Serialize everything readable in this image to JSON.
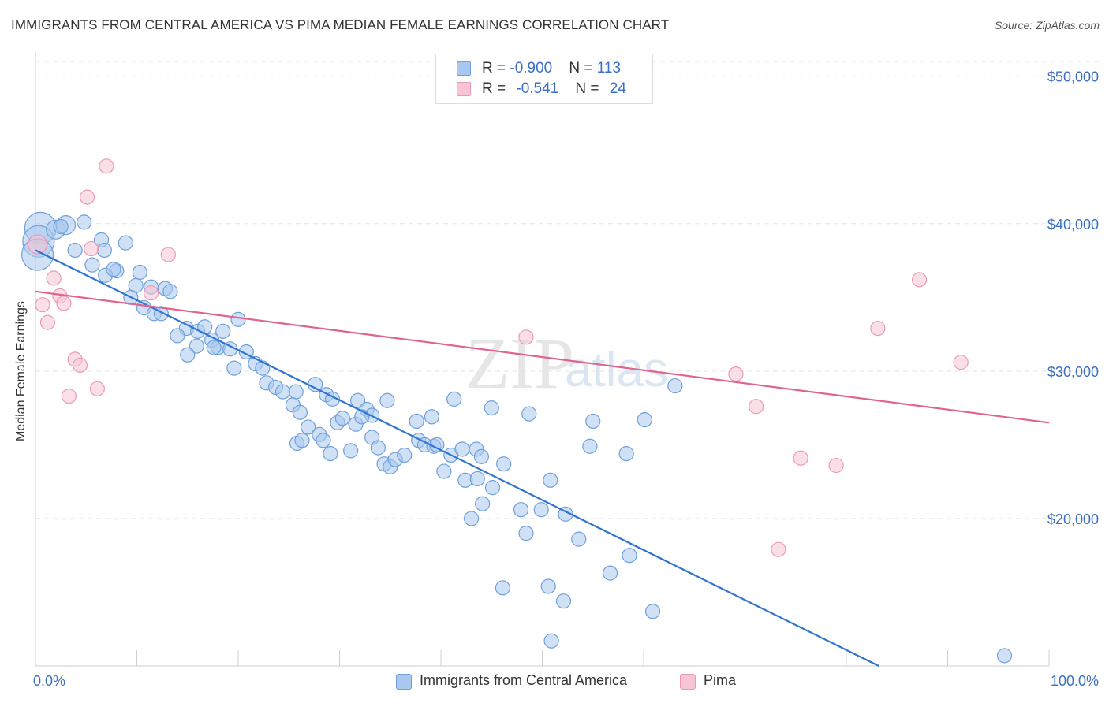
{
  "title": "IMMIGRANTS FROM CENTRAL AMERICA VS PIMA MEDIAN FEMALE EARNINGS CORRELATION CHART",
  "source": "Source: ZipAtlas.com",
  "watermark": {
    "zip": "ZIP",
    "atlas": "atlas"
  },
  "legend_top": [
    {
      "r_label": "R = ",
      "r_value": "-0.900",
      "n_label": "N = ",
      "n_value": "113",
      "color": "#6fa8e8"
    },
    {
      "r_label": "R = ",
      "r_value": "-0.541",
      "n_label": "N = ",
      "n_value": "24",
      "color": "#f2a0b8"
    }
  ],
  "legend_bottom": [
    {
      "label": "Immigrants from Central America",
      "color": "#6fa8e8"
    },
    {
      "label": "Pima",
      "color": "#f2a0b8"
    }
  ],
  "colors": {
    "blue_fill": "#a9c8ef",
    "blue_stroke": "#6fa0db",
    "blue_line": "#2f74d0",
    "pink_fill": "#f7c4d3",
    "pink_stroke": "#ec9ab4",
    "pink_line": "#e0648d",
    "tick_text": "#3a6fc4"
  },
  "chart_data": {
    "type": "scatter",
    "xlabel": "",
    "ylabel": "Median Female Earnings",
    "xlim": [
      0,
      100
    ],
    "ylim": [
      10000,
      51000
    ],
    "x_tick_labels": [
      "0.0%",
      "100.0%"
    ],
    "y_ticks": [
      20000,
      30000,
      40000,
      50000
    ],
    "y_tick_labels": [
      "$20,000",
      "$30,000",
      "$40,000",
      "$50,000"
    ],
    "grid": true,
    "series": [
      {
        "name": "Immigrants from Central America",
        "trend": {
          "x": [
            0,
            83.2
          ],
          "y": [
            38200,
            10000
          ]
        },
        "points": [
          {
            "x": 0.5,
            "y": 39700,
            "s": 3
          },
          {
            "x": 0.3,
            "y": 38800,
            "s": 3
          },
          {
            "x": 0.2,
            "y": 37900,
            "s": 3
          },
          {
            "x": 2.0,
            "y": 39600,
            "s": 2
          },
          {
            "x": 3.0,
            "y": 39900,
            "s": 2
          },
          {
            "x": 4.8,
            "y": 40100,
            "s": 1
          },
          {
            "x": 2.5,
            "y": 39800,
            "s": 1
          },
          {
            "x": 6.5,
            "y": 38900,
            "s": 1
          },
          {
            "x": 8.9,
            "y": 38700,
            "s": 1
          },
          {
            "x": 3.9,
            "y": 38200,
            "s": 1
          },
          {
            "x": 6.8,
            "y": 38200,
            "s": 1
          },
          {
            "x": 5.6,
            "y": 37200,
            "s": 1
          },
          {
            "x": 8.0,
            "y": 36800,
            "s": 1
          },
          {
            "x": 6.9,
            "y": 36500,
            "s": 1
          },
          {
            "x": 10.3,
            "y": 36700,
            "s": 1
          },
          {
            "x": 7.7,
            "y": 36900,
            "s": 1
          },
          {
            "x": 9.9,
            "y": 35800,
            "s": 1
          },
          {
            "x": 11.4,
            "y": 35700,
            "s": 1
          },
          {
            "x": 12.8,
            "y": 35600,
            "s": 1
          },
          {
            "x": 13.3,
            "y": 35400,
            "s": 1
          },
          {
            "x": 9.4,
            "y": 35000,
            "s": 1
          },
          {
            "x": 10.7,
            "y": 34300,
            "s": 1
          },
          {
            "x": 11.7,
            "y": 33900,
            "s": 1
          },
          {
            "x": 12.4,
            "y": 33900,
            "s": 1
          },
          {
            "x": 20.0,
            "y": 33500,
            "s": 1
          },
          {
            "x": 14.9,
            "y": 32900,
            "s": 1
          },
          {
            "x": 16.0,
            "y": 32700,
            "s": 1
          },
          {
            "x": 14.0,
            "y": 32400,
            "s": 1
          },
          {
            "x": 16.7,
            "y": 33000,
            "s": 1
          },
          {
            "x": 18.5,
            "y": 32700,
            "s": 1
          },
          {
            "x": 15.9,
            "y": 31700,
            "s": 1
          },
          {
            "x": 17.4,
            "y": 32100,
            "s": 1
          },
          {
            "x": 18.0,
            "y": 31600,
            "s": 1
          },
          {
            "x": 17.6,
            "y": 31600,
            "s": 1
          },
          {
            "x": 19.2,
            "y": 31500,
            "s": 1
          },
          {
            "x": 15.0,
            "y": 31100,
            "s": 1
          },
          {
            "x": 20.8,
            "y": 31300,
            "s": 1
          },
          {
            "x": 21.7,
            "y": 30500,
            "s": 1
          },
          {
            "x": 22.4,
            "y": 30200,
            "s": 1
          },
          {
            "x": 19.6,
            "y": 30200,
            "s": 1
          },
          {
            "x": 22.8,
            "y": 29200,
            "s": 1
          },
          {
            "x": 23.7,
            "y": 28900,
            "s": 1
          },
          {
            "x": 24.4,
            "y": 28600,
            "s": 1
          },
          {
            "x": 25.7,
            "y": 28600,
            "s": 1
          },
          {
            "x": 27.6,
            "y": 29100,
            "s": 1
          },
          {
            "x": 28.7,
            "y": 28400,
            "s": 1
          },
          {
            "x": 29.3,
            "y": 28100,
            "s": 1
          },
          {
            "x": 31.8,
            "y": 28000,
            "s": 1
          },
          {
            "x": 34.7,
            "y": 28000,
            "s": 1
          },
          {
            "x": 41.3,
            "y": 28100,
            "s": 1
          },
          {
            "x": 25.4,
            "y": 27700,
            "s": 1
          },
          {
            "x": 26.1,
            "y": 27200,
            "s": 1
          },
          {
            "x": 29.8,
            "y": 26500,
            "s": 1
          },
          {
            "x": 30.3,
            "y": 26800,
            "s": 1
          },
          {
            "x": 31.6,
            "y": 26400,
            "s": 1
          },
          {
            "x": 32.7,
            "y": 27400,
            "s": 1
          },
          {
            "x": 33.2,
            "y": 27000,
            "s": 1
          },
          {
            "x": 32.2,
            "y": 26900,
            "s": 1
          },
          {
            "x": 37.6,
            "y": 26600,
            "s": 1
          },
          {
            "x": 39.1,
            "y": 26900,
            "s": 1
          },
          {
            "x": 45.0,
            "y": 27500,
            "s": 1
          },
          {
            "x": 48.7,
            "y": 27100,
            "s": 1
          },
          {
            "x": 55.0,
            "y": 26600,
            "s": 1
          },
          {
            "x": 60.1,
            "y": 26700,
            "s": 1
          },
          {
            "x": 63.1,
            "y": 29000,
            "s": 1
          },
          {
            "x": 25.8,
            "y": 25100,
            "s": 1
          },
          {
            "x": 26.3,
            "y": 25300,
            "s": 1
          },
          {
            "x": 26.9,
            "y": 26200,
            "s": 1
          },
          {
            "x": 28.0,
            "y": 25700,
            "s": 1
          },
          {
            "x": 28.4,
            "y": 25300,
            "s": 1
          },
          {
            "x": 29.1,
            "y": 24400,
            "s": 1
          },
          {
            "x": 31.1,
            "y": 24600,
            "s": 1
          },
          {
            "x": 33.2,
            "y": 25500,
            "s": 1
          },
          {
            "x": 33.8,
            "y": 24800,
            "s": 1
          },
          {
            "x": 34.4,
            "y": 23700,
            "s": 1
          },
          {
            "x": 35.0,
            "y": 23500,
            "s": 1
          },
          {
            "x": 35.5,
            "y": 24000,
            "s": 1
          },
          {
            "x": 36.4,
            "y": 24300,
            "s": 1
          },
          {
            "x": 37.8,
            "y": 25300,
            "s": 1
          },
          {
            "x": 38.4,
            "y": 25000,
            "s": 1
          },
          {
            "x": 39.3,
            "y": 24900,
            "s": 1
          },
          {
            "x": 39.6,
            "y": 25000,
            "s": 1
          },
          {
            "x": 41.0,
            "y": 24300,
            "s": 1
          },
          {
            "x": 42.1,
            "y": 24700,
            "s": 1
          },
          {
            "x": 43.5,
            "y": 24700,
            "s": 1
          },
          {
            "x": 44.0,
            "y": 24200,
            "s": 1
          },
          {
            "x": 46.2,
            "y": 23700,
            "s": 1
          },
          {
            "x": 54.7,
            "y": 24900,
            "s": 1
          },
          {
            "x": 58.3,
            "y": 24400,
            "s": 1
          },
          {
            "x": 40.3,
            "y": 23200,
            "s": 1
          },
          {
            "x": 42.4,
            "y": 22600,
            "s": 1
          },
          {
            "x": 43.6,
            "y": 22700,
            "s": 1
          },
          {
            "x": 45.1,
            "y": 22100,
            "s": 1
          },
          {
            "x": 50.8,
            "y": 22600,
            "s": 1
          },
          {
            "x": 44.1,
            "y": 21000,
            "s": 1
          },
          {
            "x": 47.9,
            "y": 20600,
            "s": 1
          },
          {
            "x": 49.9,
            "y": 20600,
            "s": 1
          },
          {
            "x": 52.3,
            "y": 20300,
            "s": 1
          },
          {
            "x": 43.0,
            "y": 20000,
            "s": 1
          },
          {
            "x": 48.4,
            "y": 19000,
            "s": 1
          },
          {
            "x": 53.6,
            "y": 18600,
            "s": 1
          },
          {
            "x": 58.6,
            "y": 17500,
            "s": 1
          },
          {
            "x": 56.7,
            "y": 16300,
            "s": 1
          },
          {
            "x": 46.1,
            "y": 15300,
            "s": 1
          },
          {
            "x": 50.6,
            "y": 15400,
            "s": 1
          },
          {
            "x": 52.1,
            "y": 14400,
            "s": 1
          },
          {
            "x": 60.9,
            "y": 13700,
            "s": 1
          },
          {
            "x": 50.9,
            "y": 11700,
            "s": 1
          },
          {
            "x": 95.6,
            "y": 10700,
            "s": 1
          }
        ]
      },
      {
        "name": "Pima",
        "trend": {
          "x": [
            0,
            100
          ],
          "y": [
            35400,
            26500
          ]
        },
        "points": [
          {
            "x": 0.2,
            "y": 38600,
            "s": 2
          },
          {
            "x": 7.0,
            "y": 43900,
            "s": 1
          },
          {
            "x": 5.1,
            "y": 41800,
            "s": 1
          },
          {
            "x": 5.5,
            "y": 38300,
            "s": 1
          },
          {
            "x": 13.1,
            "y": 37900,
            "s": 1
          },
          {
            "x": 1.8,
            "y": 36300,
            "s": 1
          },
          {
            "x": 2.4,
            "y": 35100,
            "s": 1
          },
          {
            "x": 11.4,
            "y": 35300,
            "s": 1
          },
          {
            "x": 0.7,
            "y": 34500,
            "s": 1
          },
          {
            "x": 2.8,
            "y": 34600,
            "s": 1
          },
          {
            "x": 1.2,
            "y": 33300,
            "s": 1
          },
          {
            "x": 3.9,
            "y": 30800,
            "s": 1
          },
          {
            "x": 4.4,
            "y": 30400,
            "s": 1
          },
          {
            "x": 6.1,
            "y": 28800,
            "s": 1
          },
          {
            "x": 3.3,
            "y": 28300,
            "s": 1
          },
          {
            "x": 48.4,
            "y": 32300,
            "s": 1
          },
          {
            "x": 69.1,
            "y": 29800,
            "s": 1
          },
          {
            "x": 71.1,
            "y": 27600,
            "s": 1
          },
          {
            "x": 75.5,
            "y": 24100,
            "s": 1
          },
          {
            "x": 79.0,
            "y": 23600,
            "s": 1
          },
          {
            "x": 73.3,
            "y": 17900,
            "s": 1
          },
          {
            "x": 83.1,
            "y": 32900,
            "s": 1
          },
          {
            "x": 87.2,
            "y": 36200,
            "s": 1
          },
          {
            "x": 91.3,
            "y": 30600,
            "s": 1
          }
        ]
      }
    ]
  }
}
